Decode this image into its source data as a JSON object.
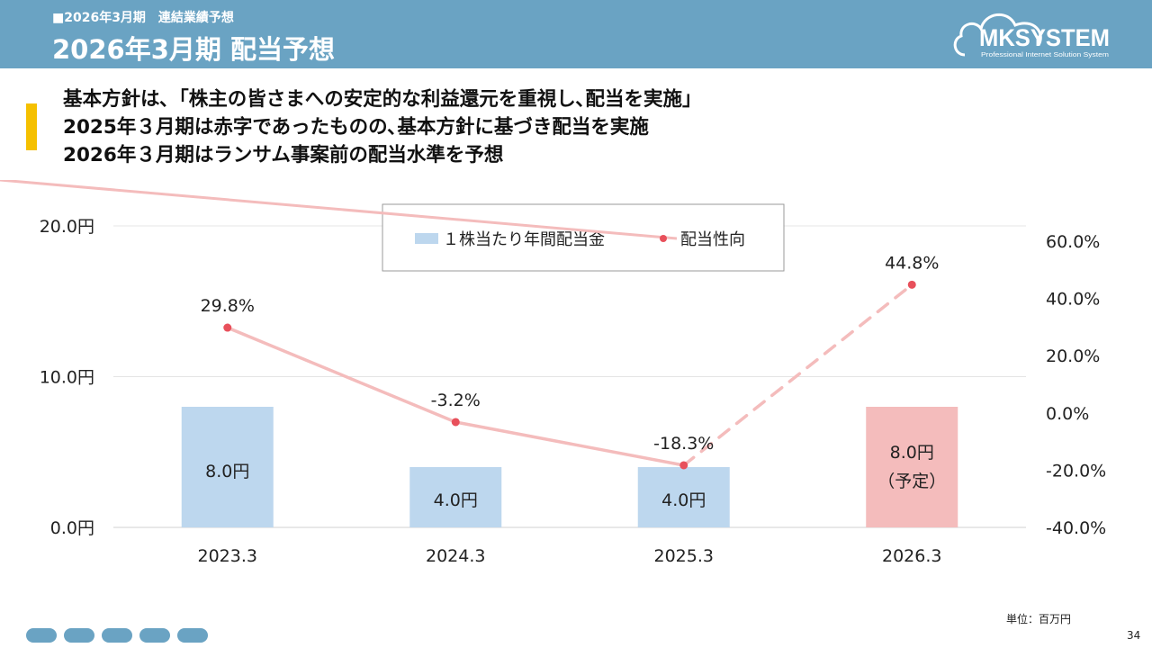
{
  "header": {
    "subtitle": "■2026年3月期　連結業績予想",
    "title": "2026年3月期 配当予想"
  },
  "logo": {
    "name": "MKSYSTEM",
    "tagline": "Professional Internet Solution System"
  },
  "policy_lines": [
    "基本方針は､「株主の皆さまへの安定的な利益還元を重視し､配当を実施」",
    "2025年３月期は赤字であったものの､基本方針に基づき配当を実施",
    "2026年３月期はランサム事案前の配当水準を予想"
  ],
  "chart_data": {
    "type": "bar+line",
    "categories": [
      "2023.3",
      "2024.3",
      "2025.3",
      "2026.3"
    ],
    "series": [
      {
        "name": "１株当たり年間配当金",
        "kind": "bar",
        "axis": "left",
        "values": [
          8.0,
          4.0,
          4.0,
          8.0
        ],
        "labels": [
          "8.0円",
          "4.0円",
          "4.0円",
          "8.0円"
        ],
        "forecast_note": "（予定）",
        "color": "#bdd7ee",
        "forecast_color": "#f4bcbc"
      },
      {
        "name": "配当性向",
        "kind": "line",
        "axis": "right",
        "values": [
          29.8,
          -3.2,
          -18.3,
          44.8
        ],
        "labels": [
          "29.8%",
          "-3.2%",
          "-18.3%",
          "44.8%"
        ],
        "color": "#f4bcbc",
        "marker_color": "#e8505b"
      }
    ],
    "yleft": {
      "range": [
        0,
        20
      ],
      "ticks": [
        "0.0円",
        "10.0円",
        "20.0円"
      ]
    },
    "yright": {
      "range": [
        -40,
        60
      ],
      "ticks": [
        "-40.0%",
        "-20.0%",
        "0.0%",
        "20.0%",
        "40.0%",
        "60.0%"
      ]
    },
    "grid": true,
    "legend": "top-center"
  },
  "footer": {
    "unit": "単位：百万円",
    "page": "34"
  }
}
